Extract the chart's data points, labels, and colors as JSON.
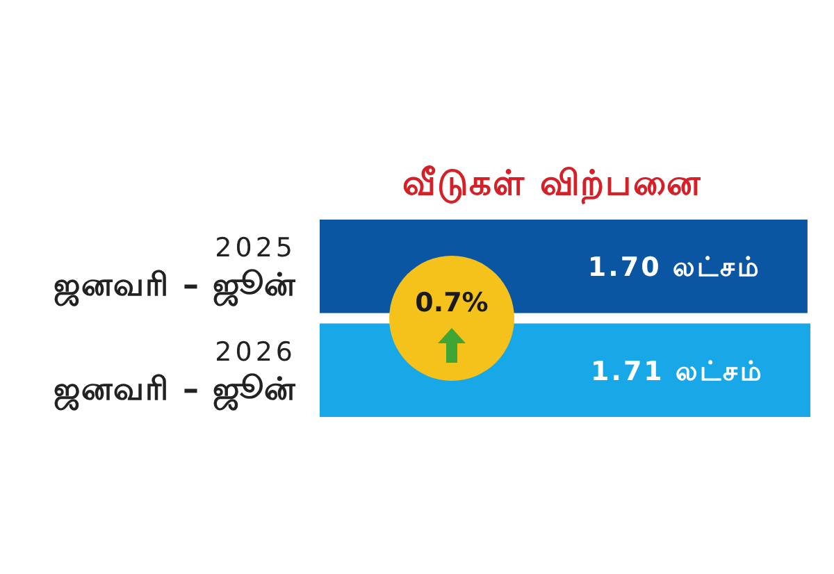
{
  "chart_data": {
    "type": "bar",
    "orientation": "horizontal",
    "title": "வீடுகள் விற்பனை",
    "categories": [
      "2025\nஜனவரி – ஜூன்",
      "2026\nஜனவரி – ஜூன்"
    ],
    "values": [
      1.7,
      1.71
    ],
    "colors": [
      "#0a56a2",
      "#18a8e8"
    ],
    "value_labels": [
      "1.70 லட்சம்",
      "1.71 லட்சம்"
    ],
    "annotations": [
      "0.7%"
    ],
    "tick_labels": "y"
  }
}
